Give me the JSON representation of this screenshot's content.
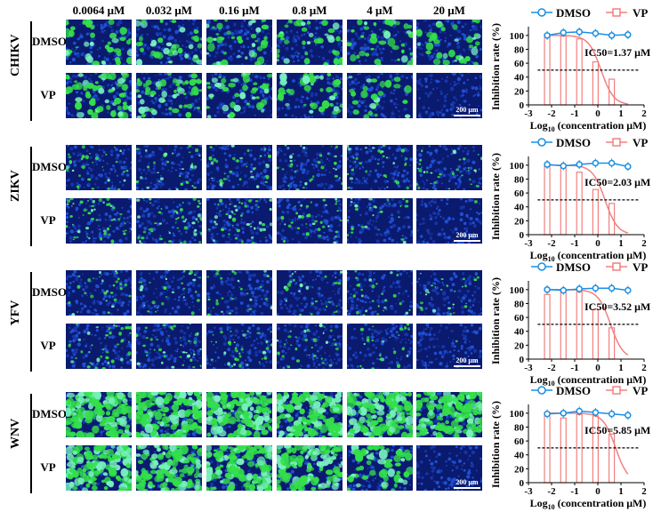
{
  "concentrations": [
    "0.0064 μM",
    "0.032 μM",
    "0.16 μM",
    "0.8 μM",
    "4 μM",
    "20 μM"
  ],
  "row_labels": [
    "DMSO",
    "VP"
  ],
  "scale_bar_label": "200 μm",
  "colors": {
    "dmso": "#1a8fe3",
    "vp": "#f08080",
    "cells_bg": "#0a1a6e",
    "stain": "#33e04a"
  },
  "panels": [
    {
      "virus": "CHIKV",
      "ic50": "IC50=1.37 μM",
      "density": 0.55,
      "vp_density": [
        0.8,
        0.75,
        0.7,
        0.55,
        0.35,
        0.0
      ]
    },
    {
      "virus": "ZIKV",
      "ic50": "IC50=2.03 μM",
      "density": 0.45,
      "vp_density": [
        0.75,
        0.7,
        0.65,
        0.5,
        0.4,
        0.02
      ]
    },
    {
      "virus": "YFV",
      "ic50": "IC50=3.52 μM",
      "density": 0.4,
      "vp_density": [
        0.6,
        0.55,
        0.5,
        0.45,
        0.35,
        0.02
      ]
    },
    {
      "virus": "WNV",
      "ic50": "IC50=5.85 μM",
      "density": 0.9,
      "vp_density": [
        0.85,
        0.85,
        0.8,
        0.8,
        0.35,
        0.0
      ]
    }
  ],
  "chart_data": [
    {
      "type": "bar",
      "panel": "CHIKV",
      "xlabel": "Log10 (concentration μM)",
      "ylabel": "Inhibition rate (%)",
      "xlim": [
        -3,
        2
      ],
      "ylim": [
        0,
        110
      ],
      "xticks": [
        -3,
        -2,
        -1,
        0,
        1,
        2
      ],
      "yticks": [
        0,
        20,
        40,
        60,
        80,
        100
      ],
      "x": [
        -2.19,
        -1.49,
        -0.8,
        -0.1,
        0.6,
        1.3
      ],
      "series": [
        {
          "name": "DMSO",
          "values": [
            100,
            104,
            105,
            103,
            100,
            101
          ]
        },
        {
          "name": "VP",
          "values": [
            100,
            99,
            95,
            62,
            37,
            0
          ]
        }
      ],
      "threshold": 50
    },
    {
      "type": "bar",
      "panel": "ZIKV",
      "xlabel": "Log10 (concentration μM)",
      "ylabel": "Inhibition rate (%)",
      "xlim": [
        -3,
        2
      ],
      "ylim": [
        0,
        110
      ],
      "xticks": [
        -3,
        -2,
        -1,
        0,
        1,
        2
      ],
      "yticks": [
        0,
        20,
        40,
        60,
        80,
        100
      ],
      "x": [
        -2.19,
        -1.49,
        -0.8,
        -0.1,
        0.6,
        1.3
      ],
      "series": [
        {
          "name": "DMSO",
          "values": [
            101,
            99,
            101,
            103,
            103,
            98
          ]
        },
        {
          "name": "VP",
          "values": [
            99,
            96,
            90,
            65,
            45,
            0
          ]
        }
      ],
      "threshold": 50
    },
    {
      "type": "bar",
      "panel": "YFV",
      "xlabel": "Log10 (concentration μM)",
      "ylabel": "Inhibition rate (%)",
      "xlim": [
        -3,
        2
      ],
      "ylim": [
        0,
        110
      ],
      "xticks": [
        -3,
        -2,
        -1,
        0,
        1,
        2
      ],
      "yticks": [
        0,
        20,
        40,
        60,
        80,
        100
      ],
      "x": [
        -2.19,
        -1.49,
        -0.8,
        -0.1,
        0.6,
        1.3
      ],
      "series": [
        {
          "name": "DMSO",
          "values": [
            100,
            99,
            101,
            102,
            102,
            99
          ]
        },
        {
          "name": "VP",
          "values": [
            93,
            97,
            97,
            72,
            45,
            0
          ]
        }
      ],
      "threshold": 50
    },
    {
      "type": "bar",
      "panel": "WNV",
      "xlabel": "Log10 (concentration μM)",
      "ylabel": "Inhibition rate (%)",
      "xlim": [
        -3,
        2
      ],
      "ylim": [
        0,
        110
      ],
      "xticks": [
        -3,
        -2,
        -1,
        0,
        1,
        2
      ],
      "yticks": [
        0,
        20,
        40,
        60,
        80,
        100
      ],
      "x": [
        -2.19,
        -1.49,
        -0.8,
        -0.1,
        0.6,
        1.3
      ],
      "series": [
        {
          "name": "DMSO",
          "values": [
            99,
            100,
            103,
            101,
            99,
            97
          ]
        },
        {
          "name": "VP",
          "values": [
            101,
            93,
            98,
            96,
            70,
            0
          ]
        }
      ],
      "threshold": 50
    }
  ]
}
